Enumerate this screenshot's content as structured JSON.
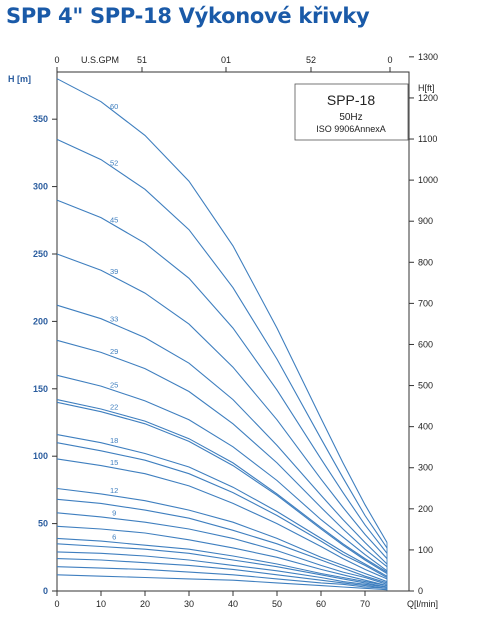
{
  "page": {
    "title": "SPP 4\" SPP-18 Výkonové křivky"
  },
  "legend_box": {
    "model": "SPP-18",
    "freq": "50Hz",
    "standard": "ISO 9906AnnexA"
  },
  "chart_data": {
    "type": "line",
    "xlabel": "Q[l/min]",
    "ylabel_left": "H [m]",
    "ylabel_right": "H[ft]",
    "top_axis_label": "U.S.GPM",
    "top_ticks": [
      "0",
      "51",
      "01",
      "52",
      "0"
    ],
    "xlim": [
      0,
      80
    ],
    "ylim": [
      0,
      385
    ],
    "x_ticks": [
      0,
      10,
      20,
      30,
      40,
      50,
      60,
      70
    ],
    "y_ticks": [
      0,
      50,
      100,
      150,
      200,
      250,
      300,
      350
    ],
    "ft_ticks": [
      0,
      100,
      200,
      300,
      400,
      500,
      600,
      700,
      800,
      900,
      1000,
      1100,
      1200,
      1300
    ],
    "ft_scale": 3.28084,
    "grid": false,
    "x": [
      0,
      10,
      20,
      30,
      40,
      50,
      60,
      65,
      70,
      75
    ],
    "series": [
      {
        "name": "60",
        "values": [
          380,
          363,
          338,
          304,
          256,
          195,
          128,
          95,
          64,
          36
        ]
      },
      {
        "name": "52",
        "values": [
          335,
          320,
          298,
          268,
          225,
          172,
          113,
          84,
          56,
          32
        ]
      },
      {
        "name": "45",
        "values": [
          290,
          277,
          258,
          232,
          195,
          149,
          98,
          73,
          49,
          28
        ]
      },
      {
        "name": "39",
        "values": [
          250,
          238,
          221,
          198,
          166,
          127,
          83,
          62,
          42,
          24
        ]
      },
      {
        "name": "33",
        "values": [
          212,
          202,
          188,
          169,
          142,
          108,
          71,
          53,
          36,
          20
        ]
      },
      {
        "name": "29",
        "values": [
          186,
          177,
          165,
          148,
          124,
          95,
          62,
          46,
          31,
          18
        ]
      },
      {
        "name": "25",
        "values": [
          160,
          152,
          141,
          127,
          107,
          82,
          53,
          40,
          27,
          15
        ]
      },
      {
        "name": "22",
        "values": [
          142,
          135,
          126,
          113,
          95,
          72,
          47,
          35,
          24,
          14
        ]
      },
      {
        "name": "18",
        "values": [
          116,
          110,
          102,
          92,
          77,
          59,
          39,
          29,
          20,
          11
        ]
      },
      {
        "name": "15",
        "values": [
          98,
          93,
          87,
          78,
          65,
          50,
          33,
          24,
          16,
          9
        ]
      },
      {
        "name": "12",
        "values": [
          76,
          72,
          67,
          60,
          51,
          39,
          25,
          19,
          13,
          7
        ]
      },
      {
        "name": "9",
        "values": [
          58,
          55,
          51,
          46,
          39,
          30,
          19,
          14,
          10,
          5
        ]
      },
      {
        "name": "6",
        "values": [
          39,
          37,
          34,
          31,
          26,
          20,
          13,
          10,
          7,
          4
        ]
      }
    ],
    "extra_curves": [
      {
        "values": [
          140,
          133,
          124,
          111,
          93,
          71,
          46,
          34,
          23,
          13
        ]
      },
      {
        "values": [
          110,
          104,
          97,
          87,
          73,
          56,
          37,
          27,
          19,
          10
        ]
      },
      {
        "values": [
          68,
          65,
          60,
          54,
          45,
          35,
          23,
          17,
          11,
          6
        ]
      },
      {
        "values": [
          48,
          46,
          43,
          38,
          32,
          25,
          16,
          12,
          8,
          4
        ]
      },
      {
        "values": [
          35,
          33,
          31,
          28,
          23,
          18,
          12,
          9,
          6,
          3
        ]
      },
      {
        "values": [
          29,
          28,
          26,
          23,
          19,
          15,
          10,
          7,
          5,
          3
        ]
      },
      {
        "values": [
          24,
          23,
          21,
          19,
          16,
          12,
          8,
          6,
          4,
          2
        ]
      },
      {
        "values": [
          18,
          17,
          16,
          14,
          12,
          9,
          6,
          5,
          3,
          2
        ]
      },
      {
        "values": [
          12,
          11,
          10,
          9,
          8,
          6,
          4,
          3,
          2,
          1
        ]
      }
    ]
  }
}
